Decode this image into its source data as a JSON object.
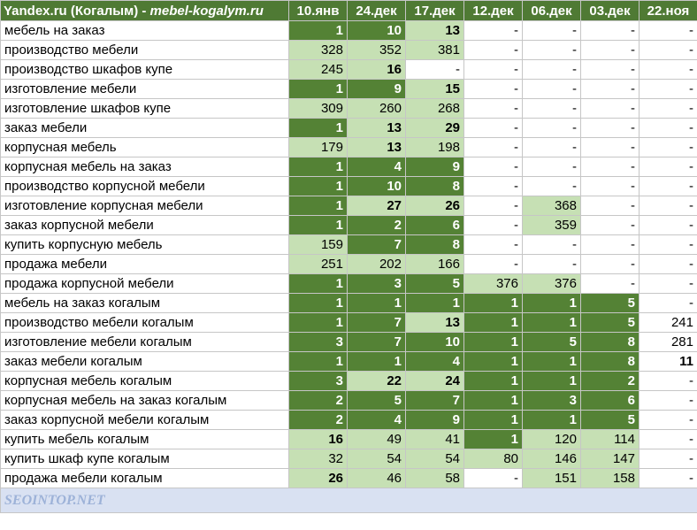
{
  "header": {
    "engine": "Yandex.ru (Когалым) - ",
    "site": "mebel-kogalym.ru",
    "dates": [
      "10.янв",
      "24.дек",
      "17.дек",
      "12.дек",
      "06.дек",
      "03.дек",
      "22.ноя"
    ]
  },
  "rows": [
    {
      "query": "мебель на заказ",
      "cells": [
        {
          "v": "1",
          "s": "dark",
          "b": 1
        },
        {
          "v": "10",
          "s": "dark",
          "b": 1
        },
        {
          "v": "13",
          "s": "light",
          "b": 1
        },
        {
          "v": "-",
          "s": "plain",
          "b": 0
        },
        {
          "v": "-",
          "s": "plain",
          "b": 0
        },
        {
          "v": "-",
          "s": "plain",
          "b": 0
        },
        {
          "v": "-",
          "s": "plain",
          "b": 0
        }
      ]
    },
    {
      "query": "производство мебели",
      "cells": [
        {
          "v": "328",
          "s": "light",
          "b": 0
        },
        {
          "v": "352",
          "s": "light",
          "b": 0
        },
        {
          "v": "381",
          "s": "light",
          "b": 0
        },
        {
          "v": "-",
          "s": "plain",
          "b": 0
        },
        {
          "v": "-",
          "s": "plain",
          "b": 0
        },
        {
          "v": "-",
          "s": "plain",
          "b": 0
        },
        {
          "v": "-",
          "s": "plain",
          "b": 0
        }
      ]
    },
    {
      "query": "производство шкафов купе",
      "cells": [
        {
          "v": "245",
          "s": "light",
          "b": 0
        },
        {
          "v": "16",
          "s": "light",
          "b": 1
        },
        {
          "v": "-",
          "s": "plain",
          "b": 0
        },
        {
          "v": "-",
          "s": "plain",
          "b": 0
        },
        {
          "v": "-",
          "s": "plain",
          "b": 0
        },
        {
          "v": "-",
          "s": "plain",
          "b": 0
        },
        {
          "v": "-",
          "s": "plain",
          "b": 0
        }
      ]
    },
    {
      "query": "изготовление мебели",
      "cells": [
        {
          "v": "1",
          "s": "dark",
          "b": 1
        },
        {
          "v": "9",
          "s": "dark",
          "b": 1
        },
        {
          "v": "15",
          "s": "light",
          "b": 1
        },
        {
          "v": "-",
          "s": "plain",
          "b": 0
        },
        {
          "v": "-",
          "s": "plain",
          "b": 0
        },
        {
          "v": "-",
          "s": "plain",
          "b": 0
        },
        {
          "v": "-",
          "s": "plain",
          "b": 0
        }
      ]
    },
    {
      "query": "изготовление шкафов купе",
      "cells": [
        {
          "v": "309",
          "s": "light",
          "b": 0
        },
        {
          "v": "260",
          "s": "light",
          "b": 0
        },
        {
          "v": "268",
          "s": "light",
          "b": 0
        },
        {
          "v": "-",
          "s": "plain",
          "b": 0
        },
        {
          "v": "-",
          "s": "plain",
          "b": 0
        },
        {
          "v": "-",
          "s": "plain",
          "b": 0
        },
        {
          "v": "-",
          "s": "plain",
          "b": 0
        }
      ]
    },
    {
      "query": "заказ мебели",
      "cells": [
        {
          "v": "1",
          "s": "dark",
          "b": 1
        },
        {
          "v": "13",
          "s": "light",
          "b": 1
        },
        {
          "v": "29",
          "s": "light",
          "b": 1
        },
        {
          "v": "-",
          "s": "plain",
          "b": 0
        },
        {
          "v": "-",
          "s": "plain",
          "b": 0
        },
        {
          "v": "-",
          "s": "plain",
          "b": 0
        },
        {
          "v": "-",
          "s": "plain",
          "b": 0
        }
      ]
    },
    {
      "query": "корпусная мебель",
      "cells": [
        {
          "v": "179",
          "s": "light",
          "b": 0
        },
        {
          "v": "13",
          "s": "light",
          "b": 1
        },
        {
          "v": "198",
          "s": "light",
          "b": 0
        },
        {
          "v": "-",
          "s": "plain",
          "b": 0
        },
        {
          "v": "-",
          "s": "plain",
          "b": 0
        },
        {
          "v": "-",
          "s": "plain",
          "b": 0
        },
        {
          "v": "-",
          "s": "plain",
          "b": 0
        }
      ]
    },
    {
      "query": "корпусная мебель на заказ",
      "cells": [
        {
          "v": "1",
          "s": "dark",
          "b": 1
        },
        {
          "v": "4",
          "s": "dark",
          "b": 1
        },
        {
          "v": "9",
          "s": "dark",
          "b": 1
        },
        {
          "v": "-",
          "s": "plain",
          "b": 0
        },
        {
          "v": "-",
          "s": "plain",
          "b": 0
        },
        {
          "v": "-",
          "s": "plain",
          "b": 0
        },
        {
          "v": "-",
          "s": "plain",
          "b": 0
        }
      ]
    },
    {
      "query": "производство корпусной мебели",
      "cells": [
        {
          "v": "1",
          "s": "dark",
          "b": 1
        },
        {
          "v": "10",
          "s": "dark",
          "b": 1
        },
        {
          "v": "8",
          "s": "dark",
          "b": 1
        },
        {
          "v": "-",
          "s": "plain",
          "b": 0
        },
        {
          "v": "-",
          "s": "plain",
          "b": 0
        },
        {
          "v": "-",
          "s": "plain",
          "b": 0
        },
        {
          "v": "-",
          "s": "plain",
          "b": 0
        }
      ]
    },
    {
      "query": "изготовление корпусная мебели",
      "cells": [
        {
          "v": "1",
          "s": "dark",
          "b": 1
        },
        {
          "v": "27",
          "s": "light",
          "b": 1
        },
        {
          "v": "26",
          "s": "light",
          "b": 1
        },
        {
          "v": "-",
          "s": "plain",
          "b": 0
        },
        {
          "v": "368",
          "s": "light",
          "b": 0
        },
        {
          "v": "-",
          "s": "plain",
          "b": 0
        },
        {
          "v": "-",
          "s": "plain",
          "b": 0
        }
      ]
    },
    {
      "query": "заказ корпусной мебели",
      "cells": [
        {
          "v": "1",
          "s": "dark",
          "b": 1
        },
        {
          "v": "2",
          "s": "dark",
          "b": 1
        },
        {
          "v": "6",
          "s": "dark",
          "b": 1
        },
        {
          "v": "-",
          "s": "plain",
          "b": 0
        },
        {
          "v": "359",
          "s": "light",
          "b": 0
        },
        {
          "v": "-",
          "s": "plain",
          "b": 0
        },
        {
          "v": "-",
          "s": "plain",
          "b": 0
        }
      ]
    },
    {
      "query": "купить корпусную мебель",
      "cells": [
        {
          "v": "159",
          "s": "light",
          "b": 0
        },
        {
          "v": "7",
          "s": "dark",
          "b": 1
        },
        {
          "v": "8",
          "s": "dark",
          "b": 1
        },
        {
          "v": "-",
          "s": "plain",
          "b": 0
        },
        {
          "v": "-",
          "s": "plain",
          "b": 0
        },
        {
          "v": "-",
          "s": "plain",
          "b": 0
        },
        {
          "v": "-",
          "s": "plain",
          "b": 0
        }
      ]
    },
    {
      "query": "продажа мебели",
      "cells": [
        {
          "v": "251",
          "s": "light",
          "b": 0
        },
        {
          "v": "202",
          "s": "light",
          "b": 0
        },
        {
          "v": "166",
          "s": "light",
          "b": 0
        },
        {
          "v": "-",
          "s": "plain",
          "b": 0
        },
        {
          "v": "-",
          "s": "plain",
          "b": 0
        },
        {
          "v": "-",
          "s": "plain",
          "b": 0
        },
        {
          "v": "-",
          "s": "plain",
          "b": 0
        }
      ]
    },
    {
      "query": "продажа корпусной мебели",
      "cells": [
        {
          "v": "1",
          "s": "dark",
          "b": 1
        },
        {
          "v": "3",
          "s": "dark",
          "b": 1
        },
        {
          "v": "5",
          "s": "dark",
          "b": 1
        },
        {
          "v": "376",
          "s": "light",
          "b": 0
        },
        {
          "v": "376",
          "s": "light",
          "b": 0
        },
        {
          "v": "-",
          "s": "plain",
          "b": 0
        },
        {
          "v": "-",
          "s": "plain",
          "b": 0
        }
      ]
    },
    {
      "query": "мебель на заказ когалым",
      "cells": [
        {
          "v": "1",
          "s": "dark",
          "b": 1
        },
        {
          "v": "1",
          "s": "dark",
          "b": 1
        },
        {
          "v": "1",
          "s": "dark",
          "b": 1
        },
        {
          "v": "1",
          "s": "dark",
          "b": 1
        },
        {
          "v": "1",
          "s": "dark",
          "b": 1
        },
        {
          "v": "5",
          "s": "dark",
          "b": 1
        },
        {
          "v": "-",
          "s": "plain",
          "b": 0
        }
      ]
    },
    {
      "query": "производство мебели когалым",
      "cells": [
        {
          "v": "1",
          "s": "dark",
          "b": 1
        },
        {
          "v": "7",
          "s": "dark",
          "b": 1
        },
        {
          "v": "13",
          "s": "light",
          "b": 1
        },
        {
          "v": "1",
          "s": "dark",
          "b": 1
        },
        {
          "v": "1",
          "s": "dark",
          "b": 1
        },
        {
          "v": "5",
          "s": "dark",
          "b": 1
        },
        {
          "v": "241",
          "s": "plain",
          "b": 0
        }
      ]
    },
    {
      "query": "изготовление мебели когалым",
      "cells": [
        {
          "v": "3",
          "s": "dark",
          "b": 1
        },
        {
          "v": "7",
          "s": "dark",
          "b": 1
        },
        {
          "v": "10",
          "s": "dark",
          "b": 1
        },
        {
          "v": "1",
          "s": "dark",
          "b": 1
        },
        {
          "v": "5",
          "s": "dark",
          "b": 1
        },
        {
          "v": "8",
          "s": "dark",
          "b": 1
        },
        {
          "v": "281",
          "s": "plain",
          "b": 0
        }
      ]
    },
    {
      "query": "заказ мебели когалым",
      "cells": [
        {
          "v": "1",
          "s": "dark",
          "b": 1
        },
        {
          "v": "1",
          "s": "dark",
          "b": 1
        },
        {
          "v": "4",
          "s": "dark",
          "b": 1
        },
        {
          "v": "1",
          "s": "dark",
          "b": 1
        },
        {
          "v": "1",
          "s": "dark",
          "b": 1
        },
        {
          "v": "8",
          "s": "dark",
          "b": 1
        },
        {
          "v": "11",
          "s": "plain",
          "b": 1
        }
      ]
    },
    {
      "query": "корпусная мебель когалым",
      "cells": [
        {
          "v": "3",
          "s": "dark",
          "b": 1
        },
        {
          "v": "22",
          "s": "light",
          "b": 1
        },
        {
          "v": "24",
          "s": "light",
          "b": 1
        },
        {
          "v": "1",
          "s": "dark",
          "b": 1
        },
        {
          "v": "1",
          "s": "dark",
          "b": 1
        },
        {
          "v": "2",
          "s": "dark",
          "b": 1
        },
        {
          "v": "-",
          "s": "plain",
          "b": 0
        }
      ]
    },
    {
      "query": "корпусная мебель на заказ когалым",
      "cells": [
        {
          "v": "2",
          "s": "dark",
          "b": 1
        },
        {
          "v": "5",
          "s": "dark",
          "b": 1
        },
        {
          "v": "7",
          "s": "dark",
          "b": 1
        },
        {
          "v": "1",
          "s": "dark",
          "b": 1
        },
        {
          "v": "3",
          "s": "dark",
          "b": 1
        },
        {
          "v": "6",
          "s": "dark",
          "b": 1
        },
        {
          "v": "-",
          "s": "plain",
          "b": 0
        }
      ]
    },
    {
      "query": "заказ корпусной мебели когалым",
      "cells": [
        {
          "v": "2",
          "s": "dark",
          "b": 1
        },
        {
          "v": "4",
          "s": "dark",
          "b": 1
        },
        {
          "v": "9",
          "s": "dark",
          "b": 1
        },
        {
          "v": "1",
          "s": "dark",
          "b": 1
        },
        {
          "v": "1",
          "s": "dark",
          "b": 1
        },
        {
          "v": "5",
          "s": "dark",
          "b": 1
        },
        {
          "v": "-",
          "s": "plain",
          "b": 0
        }
      ]
    },
    {
      "query": "купить мебель когалым",
      "cells": [
        {
          "v": "16",
          "s": "light",
          "b": 1
        },
        {
          "v": "49",
          "s": "light",
          "b": 0
        },
        {
          "v": "41",
          "s": "light",
          "b": 0
        },
        {
          "v": "1",
          "s": "dark",
          "b": 1
        },
        {
          "v": "120",
          "s": "light",
          "b": 0
        },
        {
          "v": "114",
          "s": "light",
          "b": 0
        },
        {
          "v": "-",
          "s": "plain",
          "b": 0
        }
      ]
    },
    {
      "query": "купить шкаф купе когалым",
      "cells": [
        {
          "v": "32",
          "s": "light",
          "b": 0
        },
        {
          "v": "54",
          "s": "light",
          "b": 0
        },
        {
          "v": "54",
          "s": "light",
          "b": 0
        },
        {
          "v": "80",
          "s": "light",
          "b": 0
        },
        {
          "v": "146",
          "s": "light",
          "b": 0
        },
        {
          "v": "147",
          "s": "light",
          "b": 0
        },
        {
          "v": "-",
          "s": "plain",
          "b": 0
        }
      ]
    },
    {
      "query": "продажа мебели когалым",
      "cells": [
        {
          "v": "26",
          "s": "light",
          "b": 1
        },
        {
          "v": "46",
          "s": "light",
          "b": 0
        },
        {
          "v": "58",
          "s": "light",
          "b": 0
        },
        {
          "v": "-",
          "s": "plain",
          "b": 0
        },
        {
          "v": "151",
          "s": "light",
          "b": 0
        },
        {
          "v": "158",
          "s": "light",
          "b": 0
        },
        {
          "v": "-",
          "s": "plain",
          "b": 0
        }
      ]
    }
  ],
  "footer": {
    "brand": "SEOINTOP.NET"
  },
  "colors": {
    "header_bg": "#4f7a34",
    "top10_bg": "#548235",
    "top_light_bg": "#c6e0b4",
    "footer_bg": "#d9e1f2"
  }
}
